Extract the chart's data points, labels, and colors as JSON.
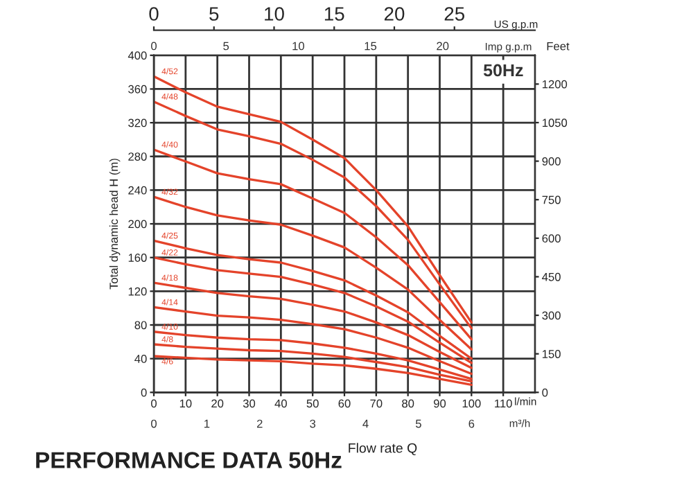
{
  "chart_data": {
    "type": "line",
    "title": "PERFORMANCE DATA 50Hz",
    "xlabel": "l/min",
    "ylabel": "Total dynamic head H (m)",
    "y2label": "Feet",
    "x2label": "US g.p.m",
    "annotations": [
      "50Hz",
      "Flow rate Q",
      "0",
      "5",
      "10",
      "15",
      "20",
      "Imp g.p.m",
      "0",
      "1",
      "2",
      "3",
      "4",
      "5",
      "6",
      "m³/h"
    ],
    "x": [
      0,
      10,
      20,
      30,
      40,
      50,
      60,
      70,
      80,
      90,
      100
    ],
    "series": [
      {
        "name": "4/52",
        "color": "#e4432a",
        "values": [
          375,
          356,
          339,
          330,
          321,
          300,
          278,
          240,
          197,
          139,
          83
        ]
      },
      {
        "name": "4/48",
        "color": "#e4432a",
        "values": [
          345,
          328,
          312,
          304,
          295,
          276,
          255,
          221,
          181,
          128,
          76
        ]
      },
      {
        "name": "4/40",
        "color": "#e4432a",
        "values": [
          288,
          274,
          260,
          253,
          247,
          230,
          213,
          184,
          151,
          107,
          63
        ]
      },
      {
        "name": "4/32",
        "color": "#e4432a",
        "values": [
          232,
          220,
          210,
          204,
          199,
          186,
          172,
          148,
          122,
          86,
          51
        ]
      },
      {
        "name": "4/25",
        "color": "#e4432a",
        "values": [
          180,
          171,
          163,
          158,
          154,
          144,
          133,
          115,
          95,
          67,
          40
        ]
      },
      {
        "name": "4/22",
        "color": "#e4432a",
        "values": [
          160,
          152,
          145,
          141,
          137,
          128,
          118,
          102,
          84,
          59,
          35
        ]
      },
      {
        "name": "4/18",
        "color": "#e4432a",
        "values": [
          130,
          124,
          118,
          114,
          111,
          104,
          96,
          83,
          68,
          48,
          29
        ]
      },
      {
        "name": "4/14",
        "color": "#e4432a",
        "values": [
          101,
          96,
          91,
          89,
          86,
          81,
          75,
          65,
          53,
          37,
          22
        ]
      },
      {
        "name": "4/10",
        "color": "#e4432a",
        "values": [
          72,
          68,
          65,
          63,
          62,
          58,
          53,
          46,
          38,
          27,
          16
        ]
      },
      {
        "name": "4/8",
        "color": "#e4432a",
        "values": [
          57,
          54,
          52,
          50,
          49,
          46,
          42,
          36,
          30,
          21,
          13
        ]
      },
      {
        "name": "4/6",
        "color": "#e4432a",
        "values": [
          43,
          41,
          39,
          38,
          37,
          34,
          32,
          28,
          23,
          16,
          9
        ]
      }
    ],
    "xlim": [
      0,
      120
    ],
    "xticks": [
      0,
      10,
      20,
      30,
      40,
      50,
      60,
      70,
      80,
      90,
      100,
      110
    ],
    "ylim": [
      0,
      400
    ],
    "yticks": [
      0,
      40,
      80,
      120,
      160,
      200,
      240,
      280,
      320,
      360,
      400
    ],
    "y2lim": [
      0,
      1312
    ],
    "y2ticks": [
      0,
      150,
      300,
      450,
      600,
      750,
      900,
      1050,
      1200
    ],
    "x2lim": [
      0,
      31.7
    ],
    "x2ticks": [
      0,
      5,
      10,
      15,
      20,
      25
    ],
    "grid": true,
    "legend": false,
    "marker": "none",
    "line_style": "solid"
  }
}
